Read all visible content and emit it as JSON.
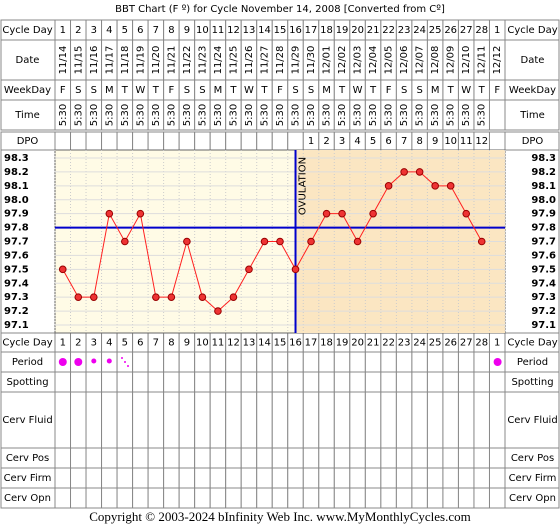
{
  "title": "BBT Chart (F º) for Cycle November 14, 2008  [Converted from Cº]",
  "row_labels": [
    "Cycle Day",
    "Date",
    "WeekDay",
    "Time",
    "DPO",
    "Cycle Day",
    "Period",
    "Spotting",
    "Cerv Fluid",
    "Cerv Pos",
    "Cerv Firm",
    "Cerv Opn"
  ],
  "cycle_days": [
    1,
    2,
    3,
    4,
    5,
    6,
    7,
    8,
    9,
    10,
    11,
    12,
    13,
    14,
    15,
    16,
    17,
    18,
    19,
    20,
    21,
    22,
    23,
    24,
    25,
    26,
    27,
    28,
    1
  ],
  "weekdays": [
    "F",
    "S",
    "S",
    "M",
    "T",
    "W",
    "T",
    "F",
    "S",
    "S",
    "M",
    "T",
    "W",
    "T",
    "F",
    "S",
    "S",
    "M",
    "T",
    "W",
    "T",
    "F",
    "S",
    "S",
    "M",
    "T",
    "W",
    "T",
    "F"
  ],
  "times": [
    "5:30",
    "5:30",
    "5:30",
    "5:30",
    "5:30",
    "5:30",
    "5:30",
    "5:30",
    "5:30",
    "5:30",
    "5:30",
    "5:30",
    "5:30",
    "5:30",
    "5:30",
    "5:30",
    "5:30",
    "5:30",
    "5:30",
    "5:30",
    "5:30",
    "5:30",
    "5:30",
    "5:30",
    "5:30",
    "5:30",
    "5:30",
    "5:30",
    null
  ],
  "dpo": [
    null,
    null,
    null,
    null,
    null,
    null,
    null,
    null,
    null,
    null,
    null,
    null,
    null,
    null,
    null,
    null,
    1,
    2,
    3,
    4,
    5,
    6,
    7,
    8,
    9,
    10,
    11,
    12,
    null
  ],
  "chart_data": {
    "type": "line",
    "categories": [
      "11/14",
      "11/15",
      "11/16",
      "11/17",
      "11/18",
      "11/19",
      "11/20",
      "11/21",
      "11/22",
      "11/23",
      "11/24",
      "11/25",
      "11/26",
      "11/27",
      "11/28",
      "11/29",
      "11/30",
      "12/01",
      "12/02",
      "12/03",
      "12/04",
      "12/05",
      "12/06",
      "12/07",
      "12/08",
      "12/09",
      "12/10",
      "12/11",
      "12/12"
    ],
    "series": [
      {
        "name": "BBT",
        "color": "#ff2020",
        "values": [
          97.5,
          97.3,
          97.3,
          97.9,
          97.7,
          97.9,
          97.3,
          97.3,
          97.7,
          97.3,
          97.2,
          97.3,
          97.5,
          97.7,
          97.7,
          97.5,
          97.7,
          97.9,
          97.9,
          97.7,
          97.9,
          98.1,
          98.2,
          98.2,
          98.1,
          98.1,
          97.9,
          97.7,
          null
        ]
      }
    ],
    "ylim": [
      97.1,
      98.3
    ],
    "yticks": [
      97.1,
      97.2,
      97.3,
      97.4,
      97.5,
      97.6,
      97.7,
      97.8,
      97.9,
      {
        "value": 98.0,
        "label": "98.0"
      },
      98.1,
      98.2,
      98.3
    ],
    "coverline": 97.8,
    "coverline_color": "#0000cc",
    "ovulation_date": "11/29",
    "ovulation_label": "OVULATION",
    "grid": true
  },
  "footer": "Copyright © 2003-2024 bInfinity Web Inc.    www.MyMonthlyCycles.com"
}
